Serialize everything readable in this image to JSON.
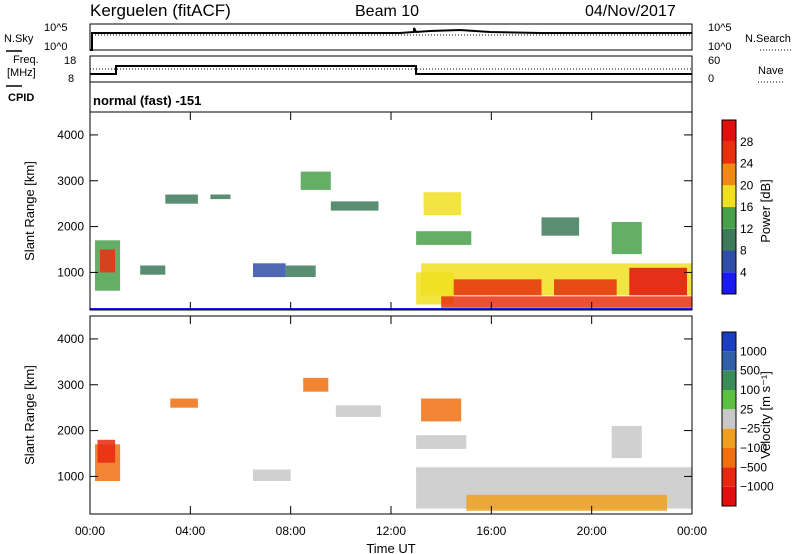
{
  "header": {
    "title": "Kerguelen (fitACF)",
    "beam": "Beam 10",
    "date": "04/Nov/2017"
  },
  "noise_panel": {
    "left_label": "N.Sky",
    "right_label": "N.Search",
    "ticks_left": [
      "10^5",
      "10^0"
    ],
    "ticks_right": [
      "10^5",
      "10^0"
    ]
  },
  "freq_panel": {
    "left_label_line1": "Freq.",
    "left_label_line2": "[MHz]",
    "right_label": "Nave",
    "ticks_left": [
      "18",
      "8"
    ],
    "ticks_right": [
      "60",
      "0"
    ]
  },
  "cpid": {
    "label": "CPID",
    "value": "normal (fast) -151"
  },
  "x_axis": {
    "label": "Time UT",
    "ticks": [
      "00:00",
      "04:00",
      "08:00",
      "12:00",
      "16:00",
      "20:00",
      "00:00"
    ]
  },
  "colors": {
    "power": [
      "#1a1af0",
      "#2f4ea8",
      "#3c7a5a",
      "#4aa04a",
      "#f0e020",
      "#f08a10",
      "#e83010",
      "#e01010"
    ],
    "velocity": [
      "#1a3ec0",
      "#2f60a8",
      "#3c8c5a",
      "#5cc040",
      "#c8c8c8",
      "#f0a020",
      "#f07010",
      "#e82810",
      "#e01010"
    ]
  },
  "chart_data": [
    {
      "type": "heatmap",
      "parameter": "power",
      "ylabel": "Slant Range [km]",
      "xlabel": "Time UT",
      "x_range_hours": [
        0,
        24
      ],
      "ylim": [
        180,
        4500
      ],
      "y_ticks": [
        "1000",
        "2000",
        "3000",
        "4000"
      ],
      "colorbar_label": "Power [dB]",
      "colorbar_ticks": [
        "4",
        "8",
        "12",
        "16",
        "20",
        "24",
        "28"
      ],
      "scale": [
        0,
        32
      ],
      "regions": [
        {
          "t0": 0.2,
          "t1": 1.2,
          "r0": 600,
          "r1": 1700,
          "value": 14
        },
        {
          "t0": 0.4,
          "t1": 1.0,
          "r0": 1000,
          "r1": 1500,
          "value": 24
        },
        {
          "t0": 2.0,
          "t1": 3.0,
          "r0": 950,
          "r1": 1150,
          "value": 8
        },
        {
          "t0": 3.0,
          "t1": 4.3,
          "r0": 2500,
          "r1": 2700,
          "value": 8
        },
        {
          "t0": 4.8,
          "t1": 5.6,
          "r0": 2600,
          "r1": 2700,
          "value": 9
        },
        {
          "t0": 6.5,
          "t1": 7.8,
          "r0": 900,
          "r1": 1200,
          "value": 7
        },
        {
          "t0": 7.8,
          "t1": 9.0,
          "r0": 900,
          "r1": 1150,
          "value": 10
        },
        {
          "t0": 8.4,
          "t1": 9.6,
          "r0": 2800,
          "r1": 3200,
          "value": 12
        },
        {
          "t0": 9.6,
          "t1": 11.5,
          "r0": 2350,
          "r1": 2550,
          "value": 10
        },
        {
          "t0": 13.0,
          "t1": 15.2,
          "r0": 1600,
          "r1": 1900,
          "value": 13
        },
        {
          "t0": 13.3,
          "t1": 14.8,
          "r0": 2250,
          "r1": 2750,
          "value": 18
        },
        {
          "t0": 13.0,
          "t1": 14.5,
          "r0": 300,
          "r1": 1000,
          "value": 16
        },
        {
          "t0": 13.2,
          "t1": 24.0,
          "r0": 500,
          "r1": 1200,
          "value": 18
        },
        {
          "t0": 14.5,
          "t1": 18.0,
          "r0": 500,
          "r1": 850,
          "value": 27
        },
        {
          "t0": 21.5,
          "t1": 23.8,
          "r0": 500,
          "r1": 1100,
          "value": 28
        },
        {
          "t0": 18.5,
          "t1": 21.0,
          "r0": 500,
          "r1": 850,
          "value": 24
        },
        {
          "t0": 14.0,
          "t1": 24.0,
          "r0": 230,
          "r1": 480,
          "value": 26
        },
        {
          "t0": 18.0,
          "t1": 19.5,
          "r0": 1800,
          "r1": 2200,
          "value": 10
        },
        {
          "t0": 20.8,
          "t1": 22.0,
          "r0": 1400,
          "r1": 2100,
          "value": 14
        }
      ]
    },
    {
      "type": "heatmap",
      "parameter": "velocity",
      "ylabel": "Slant Range [km]",
      "xlabel": "Time UT",
      "x_range_hours": [
        0,
        24
      ],
      "ylim": [
        180,
        4500
      ],
      "y_ticks": [
        "1000",
        "2000",
        "3000",
        "4000"
      ],
      "colorbar_label": "Velocity [m s⁻¹]",
      "colorbar_ticks": [
        "1000",
        "500",
        "100",
        "25",
        "−25",
        "−100",
        "−500",
        "−1000"
      ],
      "regions": [
        {
          "t0": 0.2,
          "t1": 1.2,
          "r0": 900,
          "r1": 1700,
          "value": -100
        },
        {
          "t0": 0.3,
          "t1": 1.0,
          "r0": 1300,
          "r1": 1800,
          "value": -500
        },
        {
          "t0": 3.2,
          "t1": 4.3,
          "r0": 2500,
          "r1": 2700,
          "value": -100
        },
        {
          "t0": 6.5,
          "t1": 8.0,
          "r0": 900,
          "r1": 1150,
          "value": 0
        },
        {
          "t0": 8.5,
          "t1": 9.5,
          "r0": 2850,
          "r1": 3150,
          "value": -100
        },
        {
          "t0": 9.8,
          "t1": 11.6,
          "r0": 2300,
          "r1": 2550,
          "value": 0
        },
        {
          "t0": 13.2,
          "t1": 14.8,
          "r0": 2200,
          "r1": 2700,
          "value": -100
        },
        {
          "t0": 13.0,
          "t1": 15.0,
          "r0": 1600,
          "r1": 1900,
          "value": 0
        },
        {
          "t0": 13.0,
          "t1": 24.0,
          "r0": 300,
          "r1": 1200,
          "value": 0
        },
        {
          "t0": 15.0,
          "t1": 23.0,
          "r0": 250,
          "r1": 600,
          "value": -25
        },
        {
          "t0": 20.8,
          "t1": 22.0,
          "r0": 1400,
          "r1": 2100,
          "value": 0
        }
      ]
    }
  ]
}
